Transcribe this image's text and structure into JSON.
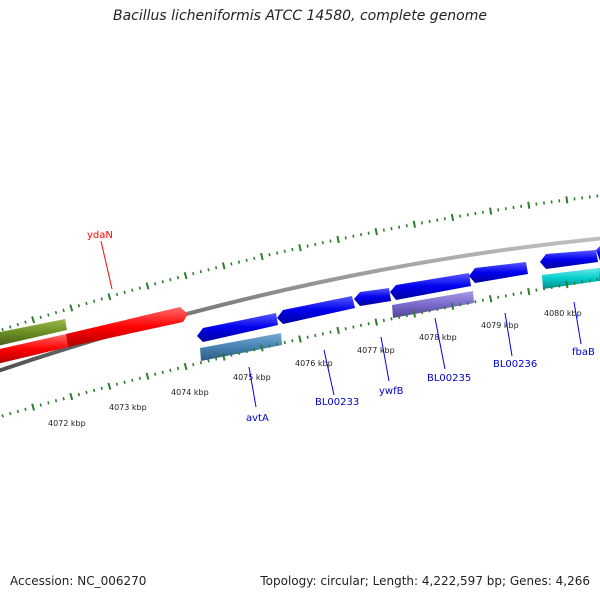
{
  "title": "Bacillus licheniformis ATCC 14580, complete genome",
  "footer": {
    "accession": "Accession: NC_006270",
    "stats": "Topology: circular; Length: 4,222,597 bp; Genes: 4,266"
  },
  "colors": {
    "backbone": "#8a8a8a",
    "ticks": "#2e7d2e",
    "forward_gene": "#ff0000",
    "reverse_gene": "#0000ee",
    "olive_gene": "#6b8e23",
    "steelblue_gene": "#4682b4",
    "purple_gene": "#7a6acd",
    "cyan_gene": "#00cdcd"
  },
  "scale_labels": [
    "4072 kbp",
    "4073 kbp",
    "4074 kbp",
    "4075 kbp",
    "4076 kbp",
    "4077 kbp",
    "4078 kbp",
    "4079 kbp",
    "4080 kbp"
  ],
  "gene_labels": [
    {
      "name": "ydaN",
      "strand": "forward"
    },
    {
      "name": "avtA",
      "strand": "reverse"
    },
    {
      "name": "BL00233",
      "strand": "reverse"
    },
    {
      "name": "ywfB",
      "strand": "reverse"
    },
    {
      "name": "BL00235",
      "strand": "reverse"
    },
    {
      "name": "BL00236",
      "strand": "reverse"
    },
    {
      "name": "fbaB",
      "strand": "reverse"
    }
  ]
}
